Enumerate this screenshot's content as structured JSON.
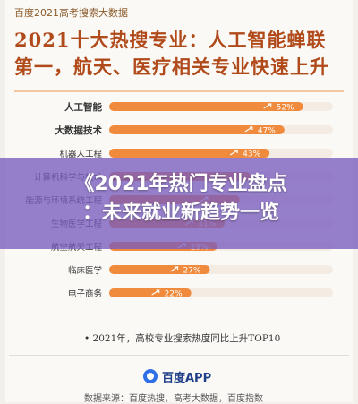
{
  "header": {
    "top_tag": "百度2021高考搜索大数据",
    "headline_line1": "2021十大热搜专业：人工智能蝉联",
    "headline_line2": "第一，航天、医疗相关专业快速上升"
  },
  "overlay": {
    "title_line1": "《2021年热门专业盘点",
    "title_line2": "：未来就业新趋势一览"
  },
  "footnote": "• 2021年，高校专业搜索热度同比上升TOP10",
  "footer": {
    "app_name": "百度APP",
    "source": "数据来源：百度热搜，高考大数据，百度指数"
  },
  "colors": {
    "bar": "#f08a3c",
    "bar_light": "#f7c49a",
    "headline": "#b04a1a"
  },
  "chart_data": {
    "type": "bar",
    "orientation": "horizontal",
    "categories": [
      "人工智能",
      "大数据技术",
      "机器人工程",
      "计算机科学与技术",
      "能源与环境系统工程",
      "生物医学工程",
      "航空航天工程",
      "临床医学",
      "电子商务"
    ],
    "values": [
      52,
      47,
      43,
      38,
      35,
      31,
      29,
      27,
      22
    ],
    "labels": [
      "52%",
      "47%",
      "43%",
      "",
      "",
      "31%",
      "29%",
      "27%",
      "22%"
    ],
    "xlim": [
      0,
      60
    ],
    "unit": "%"
  }
}
